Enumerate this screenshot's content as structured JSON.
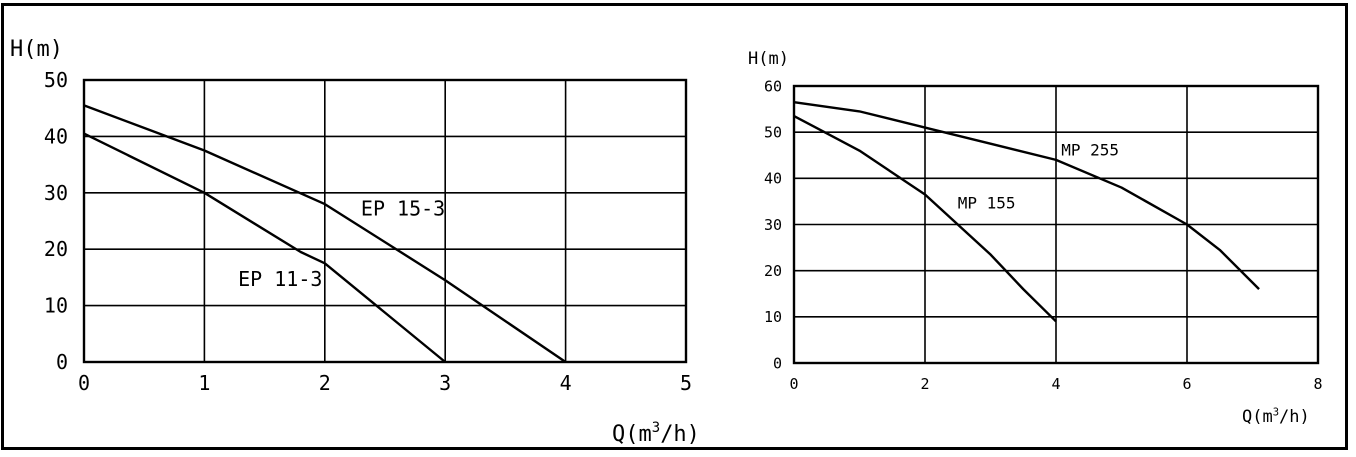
{
  "chart_data": [
    {
      "type": "line",
      "ylabel": "H(m)",
      "xlabel_prefix": "Q(m",
      "xlabel_sup": "3",
      "xlabel_suffix": "/h)",
      "xlim": [
        0,
        5
      ],
      "ylim": [
        0,
        50
      ],
      "xticks": [
        0,
        1,
        2,
        3,
        4,
        5
      ],
      "yticks": [
        0,
        10,
        20,
        30,
        40,
        50
      ],
      "grid": true,
      "series": [
        {
          "name": "EP 15-3",
          "x": [
            0,
            1,
            2,
            3,
            4
          ],
          "y": [
            45.5,
            37.5,
            28,
            14.5,
            0
          ]
        },
        {
          "name": "EP 11-3",
          "x": [
            0,
            1,
            1.8,
            2,
            3
          ],
          "y": [
            40.5,
            30,
            19.5,
            17.5,
            0
          ]
        }
      ],
      "annotations": [
        {
          "text": "EP 15-3",
          "x": 2.3,
          "y": 26
        },
        {
          "text": "EP 11-3",
          "x": 1.28,
          "y": 13.5
        }
      ]
    },
    {
      "type": "line",
      "ylabel": "H(m)",
      "xlabel_prefix": "Q(m",
      "xlabel_sup": "3",
      "xlabel_suffix": "/h)",
      "xlim": [
        0,
        8
      ],
      "ylim": [
        0,
        60
      ],
      "xticks": [
        0,
        2,
        4,
        6,
        8
      ],
      "yticks": [
        0,
        10,
        20,
        30,
        40,
        50,
        60
      ],
      "grid": true,
      "series": [
        {
          "name": "MP 255",
          "x": [
            0,
            1,
            2,
            3,
            4,
            5,
            6,
            6.5,
            7.1
          ],
          "y": [
            56.5,
            54.5,
            51,
            47.5,
            44,
            38,
            30,
            24.5,
            16
          ]
        },
        {
          "name": "MP 155",
          "x": [
            0,
            1,
            2,
            3,
            3.5,
            4
          ],
          "y": [
            53.5,
            46,
            36.5,
            23.5,
            16,
            9
          ]
        }
      ],
      "annotations": [
        {
          "text": "MP 255",
          "x": 4.08,
          "y": 45
        },
        {
          "text": "MP 155",
          "x": 2.5,
          "y": 33.5
        }
      ]
    }
  ]
}
